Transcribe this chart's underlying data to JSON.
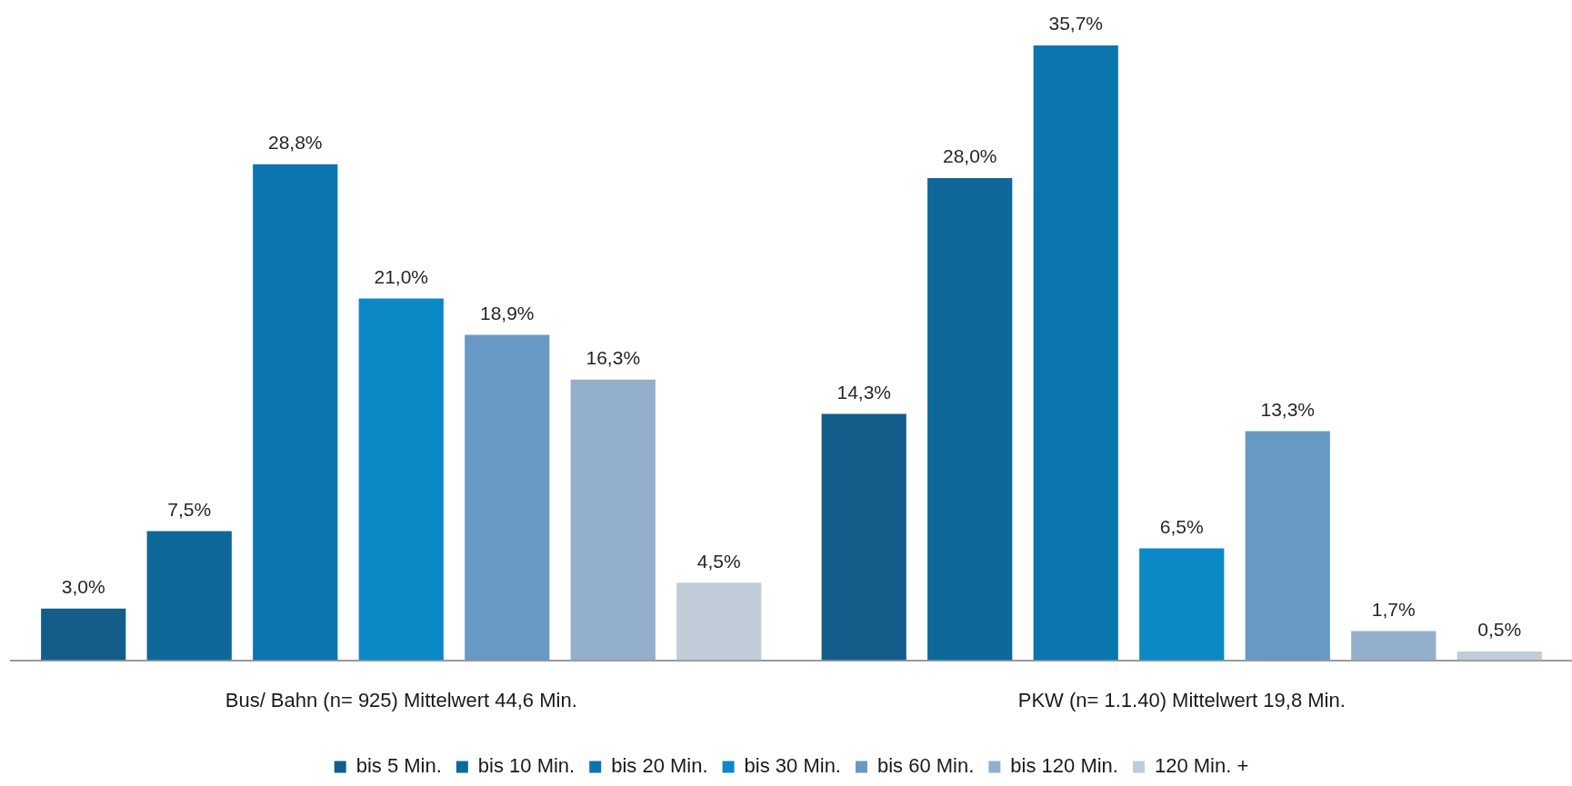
{
  "chart_data": {
    "type": "bar",
    "categories": [
      "Bus/ Bahn (n= 925) Mittelwert 44,6 Min.",
      "PKW (n= 1.1.40) Mittelwert 19,8 Min."
    ],
    "series": [
      {
        "name": "bis 5 Min.",
        "color": "#135d8a",
        "values": [
          3.0,
          14.3
        ],
        "value_labels": [
          "3,0%",
          "14,3%"
        ]
      },
      {
        "name": "bis 10 Min.",
        "color": "#0e6899",
        "values": [
          7.5,
          28.0
        ],
        "value_labels": [
          "7,5%",
          "28,0%"
        ]
      },
      {
        "name": "bis 20 Min.",
        "color": "#0a76ad",
        "values": [
          28.8,
          35.7
        ],
        "value_labels": [
          "28,8%",
          "35,7%"
        ]
      },
      {
        "name": "bis 30 Min.",
        "color": "#0b88c6",
        "values": [
          21.0,
          6.5
        ],
        "value_labels": [
          "21,0%",
          "6,5%"
        ]
      },
      {
        "name": "bis 60 Min.",
        "color": "#6899c4",
        "values": [
          18.9,
          13.3
        ],
        "value_labels": [
          "18,9%",
          "13,3%"
        ]
      },
      {
        "name": "bis 120 Min.",
        "color": "#93afcc",
        "values": [
          16.3,
          1.7
        ],
        "value_labels": [
          "16,3%",
          "1,7%"
        ]
      },
      {
        "name": "120 Min. +",
        "color": "#c0ccd8",
        "values": [
          4.5,
          0.5
        ],
        "value_labels": [
          "4,5%",
          "0,5%"
        ]
      }
    ],
    "legend": "bottom"
  }
}
